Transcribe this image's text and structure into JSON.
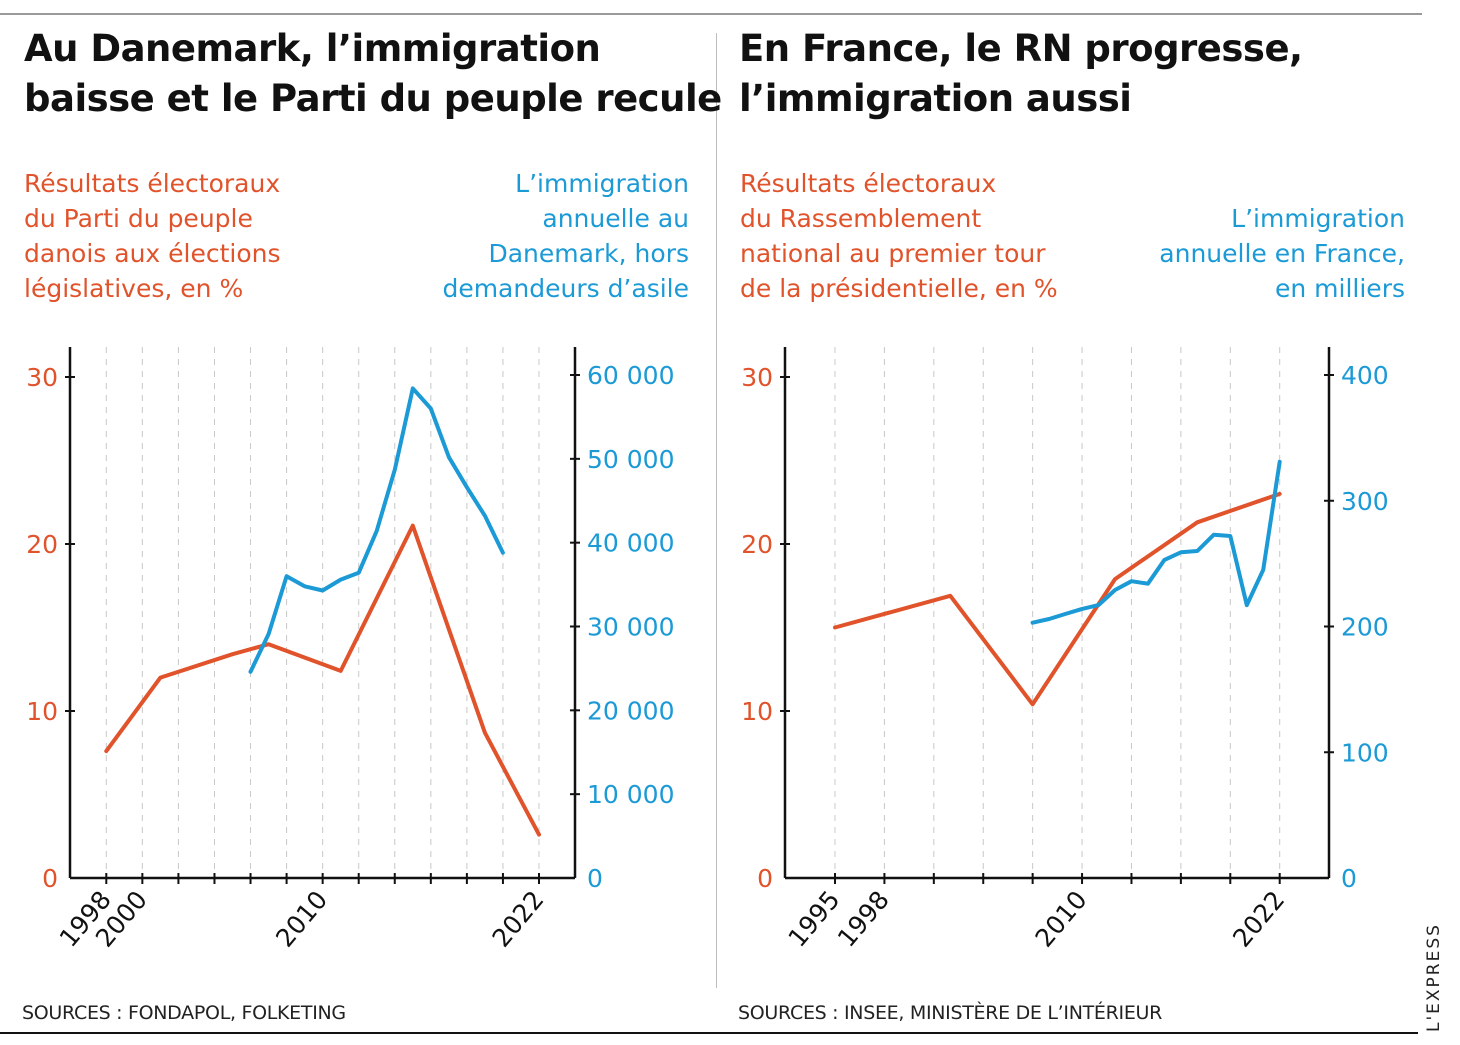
{
  "source_credit": "L'EXPRESS",
  "colors": {
    "party": "#e0532b",
    "immigration": "#1b9ad6",
    "axis": "#111111",
    "grid": "#c8c8c8"
  },
  "chart_data": [
    {
      "type": "line",
      "title": "Au Danemark, l’immigration baisse et le Parti du peuple recule",
      "title_lines": [
        "Au Danemark, l’immigration",
        "baisse et le Parti du peuple recule"
      ],
      "left_label_lines": [
        "Résultats électoraux",
        "du Parti du peuple",
        "danois aux élections",
        "législatives, en %"
      ],
      "right_label_lines": [
        "L’immigration",
        "annuelle au",
        "Danemark, hors",
        "demandeurs d’asile"
      ],
      "source": "SOURCES : FONDAPOL, FOLKETING",
      "xlim": [
        1998,
        2022
      ],
      "x_ticks": [
        1998,
        2000,
        2002,
        2004,
        2006,
        2008,
        2010,
        2012,
        2014,
        2016,
        2018,
        2020,
        2022
      ],
      "x_tick_labels": [
        {
          "year": 1998,
          "label": "1998"
        },
        {
          "year": 2000,
          "label": "2000"
        },
        {
          "year": 2010,
          "label": "2010"
        },
        {
          "year": 2022,
          "label": "2022"
        }
      ],
      "grid": "vertical dashed",
      "y_left": {
        "lim": [
          0,
          30
        ],
        "ticks": [
          0,
          10,
          20,
          30
        ],
        "tick_labels": [
          "0",
          "10",
          "20",
          "30"
        ]
      },
      "y_right": {
        "lim": [
          0,
          60000
        ],
        "ticks": [
          0,
          10000,
          20000,
          30000,
          40000,
          50000,
          60000
        ],
        "tick_labels": [
          "0",
          "10 000",
          "20 000",
          "30 000",
          "40 000",
          "50 000",
          "60 000"
        ]
      },
      "series": [
        {
          "axis": "left",
          "color": "#e0532b",
          "x": [
            1998,
            2001,
            2005,
            2007,
            2011,
            2015,
            2019,
            2022
          ],
          "y": [
            7.6,
            12.0,
            13.4,
            14.0,
            12.4,
            21.1,
            8.7,
            2.6
          ]
        },
        {
          "axis": "right",
          "color": "#1b9ad6",
          "x": [
            2006,
            2007,
            2008,
            2009,
            2010,
            2011,
            2012,
            2013,
            2014,
            2015,
            2016,
            2017,
            2018,
            2019,
            2020
          ],
          "y": [
            24600,
            29100,
            36000,
            34800,
            34300,
            35600,
            36400,
            41400,
            48700,
            58400,
            56000,
            50200,
            46600,
            43200,
            38800
          ]
        }
      ]
    },
    {
      "type": "line",
      "title": "En France, le RN progresse, l’immigration aussi",
      "title_lines": [
        "En France, le RN progresse,",
        "l’immigration aussi"
      ],
      "left_label_lines": [
        "Résultats électoraux",
        "du Rassemblement",
        "national au premier tour",
        "de la présidentielle, en %"
      ],
      "right_label_lines": [
        "L’immigration",
        "annuelle en France,",
        "en milliers"
      ],
      "source": "SOURCES : INSEE, MINISTÈRE DE L’INTÉRIEUR",
      "xlim": [
        1995,
        2022
      ],
      "x_ticks": [
        1995,
        1998,
        2001,
        2004,
        2007,
        2010,
        2013,
        2016,
        2019,
        2022
      ],
      "x_tick_labels": [
        {
          "year": 1995,
          "label": "1995"
        },
        {
          "year": 1998,
          "label": "1998"
        },
        {
          "year": 2010,
          "label": "2010"
        },
        {
          "year": 2022,
          "label": "2022"
        }
      ],
      "grid": "vertical dashed",
      "y_left": {
        "lim": [
          0,
          30
        ],
        "ticks": [
          0,
          10,
          20,
          30
        ],
        "tick_labels": [
          "0",
          "10",
          "20",
          "30"
        ]
      },
      "y_right": {
        "lim": [
          0,
          400
        ],
        "ticks": [
          0,
          100,
          200,
          300,
          400
        ],
        "tick_labels": [
          "0",
          "100",
          "200",
          "300",
          "400"
        ]
      },
      "series": [
        {
          "axis": "left",
          "color": "#e0532b",
          "x": [
            1995,
            2002,
            2007,
            2012,
            2017,
            2022
          ],
          "y": [
            15.0,
            16.9,
            10.4,
            17.9,
            21.3,
            23.0
          ]
        },
        {
          "axis": "right",
          "color": "#1b9ad6",
          "x": [
            2007,
            2008,
            2009,
            2010,
            2011,
            2012,
            2013,
            2014,
            2015,
            2016,
            2017,
            2018,
            2019,
            2020,
            2021,
            2022
          ],
          "y": [
            203,
            206,
            210,
            214,
            217,
            229,
            236,
            234,
            253,
            259,
            260,
            273,
            272,
            217,
            245,
            331
          ]
        }
      ]
    }
  ]
}
